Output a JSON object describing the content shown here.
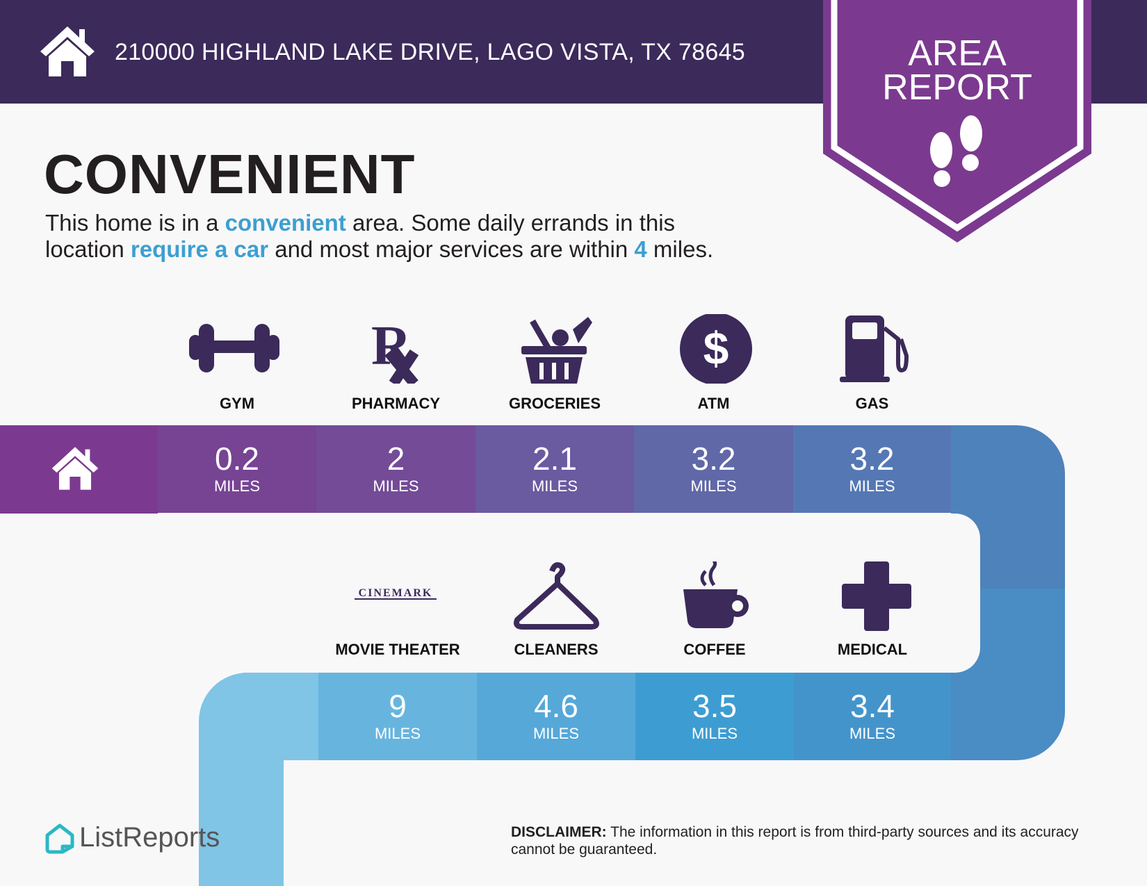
{
  "header": {
    "address": "210000 HIGHLAND LAKE DRIVE, LAGO VISTA, TX 78645",
    "badge_line1": "AREA",
    "badge_line2": "REPORT",
    "icon": "house-icon"
  },
  "title": "CONVENIENT",
  "description": {
    "p1": "This home is in a ",
    "h1": "convenient",
    "p2": " area. Some daily errands in this",
    "p3": "location ",
    "h2": "require a car",
    "p4": " and most major services are within ",
    "h3": "4",
    "p5": " miles."
  },
  "row1": [
    {
      "label": "GYM",
      "value": "0.2",
      "unit": "MILES",
      "icon": "dumbbell-icon"
    },
    {
      "label": "PHARMACY",
      "value": "2",
      "unit": "MILES",
      "icon": "rx-icon"
    },
    {
      "label": "GROCERIES",
      "value": "2.1",
      "unit": "MILES",
      "icon": "basket-icon"
    },
    {
      "label": "ATM",
      "value": "3.2",
      "unit": "MILES",
      "icon": "dollar-icon"
    },
    {
      "label": "GAS",
      "value": "3.2",
      "unit": "MILES",
      "icon": "gas-pump-icon"
    }
  ],
  "row2": [
    {
      "label": "MOVIE THEATER",
      "value": "9",
      "unit": "MILES",
      "icon": "cinemark-logo",
      "logo_text": "CINEMARK"
    },
    {
      "label": "CLEANERS",
      "value": "4.6",
      "unit": "MILES",
      "icon": "hanger-icon"
    },
    {
      "label": "COFFEE",
      "value": "3.5",
      "unit": "MILES",
      "icon": "coffee-icon"
    },
    {
      "label": "MEDICAL",
      "value": "3.4",
      "unit": "MILES",
      "icon": "medical-cross-icon"
    }
  ],
  "footer": {
    "logo": "ListReports",
    "disclaimer_label": "DISCLAIMER:",
    "disclaimer_text": " The information in this report is from third-party sources and its accuracy cannot be guaranteed."
  },
  "colors": {
    "header": "#3b2a5a",
    "ribbon": "#7b3a8f",
    "accent": "#3d9fd0",
    "icon": "#3b2a5a"
  }
}
